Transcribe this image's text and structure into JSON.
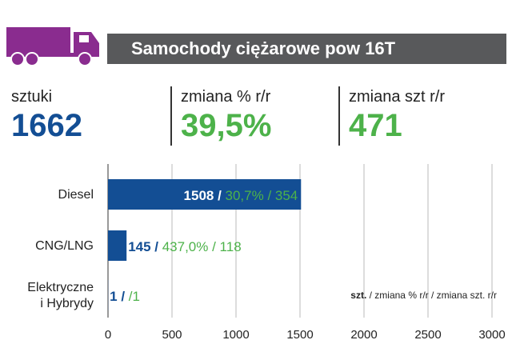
{
  "title": "Samochody ciężarowe pow 16T",
  "kpis": {
    "units_label": "sztuki",
    "units_value": "1662",
    "pct_label": "zmiana % r/r",
    "pct_value": "39,5%",
    "abs_label": "zmiana szt r/r",
    "abs_value": "471"
  },
  "colors": {
    "accent": "#8a2c8f",
    "bar": "#134e94",
    "green": "#4db24a",
    "title_bg": "#58595b"
  },
  "chart_data": {
    "type": "bar",
    "orientation": "horizontal",
    "categories": [
      [
        "Diesel"
      ],
      [
        "CNG/LNG"
      ],
      [
        "Elektryczne",
        "i Hybrydy"
      ]
    ],
    "values": [
      1508,
      145,
      1
    ],
    "pct_labels": [
      "30,7%",
      "437,0%",
      ""
    ],
    "diff_labels": [
      "354",
      "118",
      "1"
    ],
    "xlim": [
      0,
      3000
    ],
    "xticks": [
      0,
      500,
      1000,
      1500,
      2000,
      2500,
      3000
    ],
    "grid": true,
    "legend": {
      "bold": "szt.",
      "rest": " / zmiana % r/r / zmiana szt. r/r"
    }
  }
}
